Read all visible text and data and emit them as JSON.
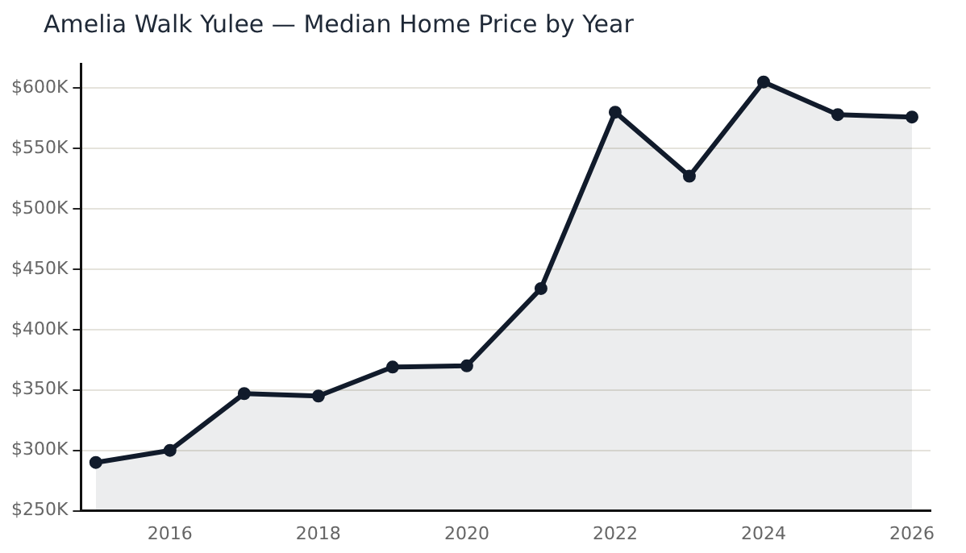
{
  "chart_data": {
    "type": "area",
    "title": "Amelia Walk Yulee — Median Home Price by Year",
    "x": [
      2015,
      2016,
      2017,
      2018,
      2019,
      2020,
      2021,
      2022,
      2023,
      2024,
      2025,
      2026
    ],
    "series": [
      {
        "color": "#111b2b",
        "values": [
          290,
          300,
          347,
          345,
          369,
          370,
          434,
          580,
          527,
          605,
          578,
          576
        ]
      }
    ],
    "xlim": [
      2014.8,
      2026.25
    ],
    "xticks": [
      2016,
      2018,
      2020,
      2022,
      2024,
      2026
    ],
    "ylim": [
      250,
      620
    ],
    "yticks": [
      {
        "value": 250,
        "label": "$250K"
      },
      {
        "value": 300,
        "label": "$300K"
      },
      {
        "value": 350,
        "label": "$350K"
      },
      {
        "value": 400,
        "label": "$400K"
      },
      {
        "value": 450,
        "label": "$450K"
      },
      {
        "value": 500,
        "label": "$500K"
      },
      {
        "value": 550,
        "label": "$550K"
      },
      {
        "value": 600,
        "label": "$600K"
      }
    ],
    "grid": "y",
    "legend": false,
    "marker": "circle",
    "line_style": "solid"
  }
}
